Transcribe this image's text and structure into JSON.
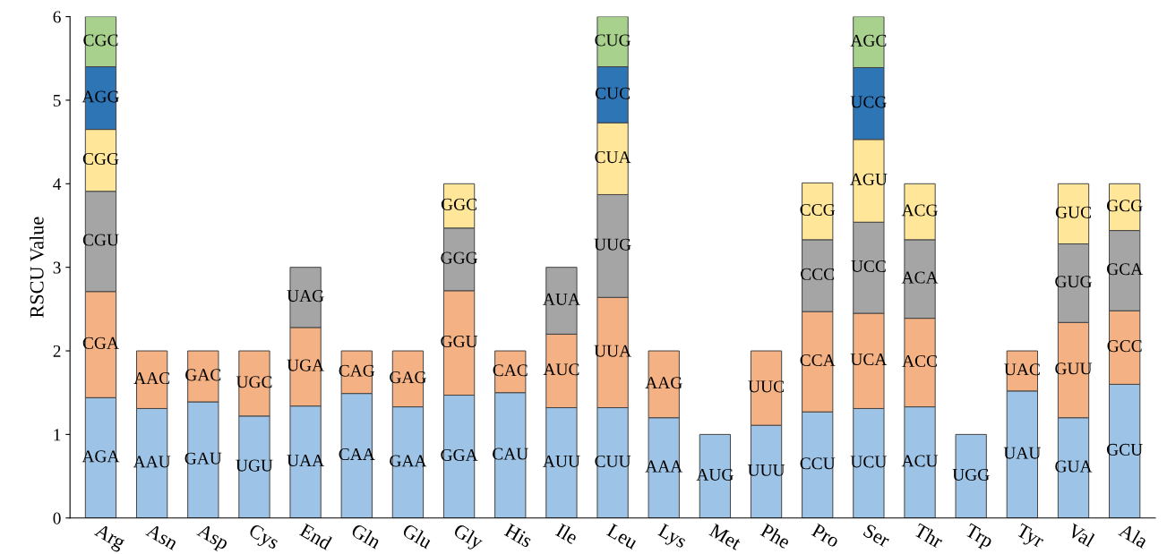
{
  "chart_data": {
    "type": "bar",
    "stacked": true,
    "ylabel": "RSCU Value",
    "ylim": [
      0,
      6
    ],
    "yticks": [
      0,
      1,
      2,
      3,
      4,
      5,
      6
    ],
    "grid": false,
    "legend": false,
    "categories": [
      "Arg",
      "Asn",
      "Asp",
      "Cys",
      "End",
      "Gln",
      "Glu",
      "Gly",
      "His",
      "Ile",
      "Leu",
      "Lys",
      "Met",
      "Phe",
      "Pro",
      "Ser",
      "Thr",
      "Trp",
      "Tyr",
      "Val",
      "Ala"
    ],
    "series": [
      {
        "color": "#9dc3e6",
        "values": [
          1.44,
          1.31,
          1.39,
          1.22,
          1.34,
          1.49,
          1.33,
          1.47,
          1.5,
          1.32,
          1.32,
          1.2,
          1.0,
          1.11,
          1.27,
          1.31,
          1.33,
          1.0,
          1.52,
          1.2,
          1.6
        ],
        "value_labels": [
          "AGA",
          "AAU",
          "GAU",
          "UGU",
          "UAA",
          "CAA",
          "GAA",
          "GGA",
          "CAU",
          "AUU",
          "CUU",
          "AAA",
          "AUG",
          "UUU",
          "CCU",
          "UCU",
          "ACU",
          "UGG",
          "UAU",
          "GUA",
          "GCU"
        ]
      },
      {
        "color": "#f4b183",
        "values": [
          1.27,
          0.69,
          0.61,
          0.78,
          0.94,
          0.51,
          0.67,
          1.25,
          0.5,
          0.88,
          1.32,
          0.8,
          null,
          0.89,
          1.2,
          1.14,
          1.06,
          null,
          0.48,
          1.14,
          0.88
        ],
        "value_labels": [
          "CGA",
          "AAC",
          "GAC",
          "UGC",
          "UGA",
          "CAG",
          "GAG",
          "GGU",
          "CAC",
          "AUC",
          "UUA",
          "AAG",
          null,
          "UUC",
          "CCA",
          "UCA",
          "ACC",
          null,
          "UAC",
          "GUU",
          "GCC"
        ]
      },
      {
        "color": "#a5a5a5",
        "values": [
          1.2,
          null,
          null,
          null,
          0.72,
          null,
          null,
          0.75,
          null,
          0.8,
          1.23,
          null,
          null,
          null,
          0.86,
          1.09,
          0.94,
          null,
          null,
          0.94,
          0.96
        ],
        "value_labels": [
          "CGU",
          null,
          null,
          null,
          "UAG",
          null,
          null,
          "GGG",
          null,
          "AUA",
          "UUG",
          null,
          null,
          null,
          "CCC",
          "UCC",
          "ACA",
          null,
          null,
          "GUG",
          "GCA"
        ]
      },
      {
        "color": "#ffe699",
        "values": [
          0.74,
          null,
          null,
          null,
          null,
          null,
          null,
          0.53,
          null,
          null,
          0.86,
          null,
          null,
          null,
          0.68,
          0.99,
          0.67,
          null,
          null,
          0.72,
          0.56
        ],
        "value_labels": [
          "CGG",
          null,
          null,
          null,
          null,
          null,
          null,
          "GGC",
          null,
          null,
          "CUA",
          null,
          null,
          null,
          "CCG",
          "AGU",
          "ACG",
          null,
          null,
          "GUC",
          "GCG"
        ]
      },
      {
        "color": "#2e75b6",
        "values": [
          0.75,
          null,
          null,
          null,
          null,
          null,
          null,
          null,
          null,
          null,
          0.67,
          null,
          null,
          null,
          null,
          0.86,
          null,
          null,
          null,
          null,
          null
        ],
        "value_labels": [
          "AGG",
          null,
          null,
          null,
          null,
          null,
          null,
          null,
          null,
          null,
          "CUC",
          null,
          null,
          null,
          null,
          "UCG",
          null,
          null,
          null,
          null,
          null
        ]
      },
      {
        "color": "#a9d18e",
        "values": [
          0.6,
          null,
          null,
          null,
          null,
          null,
          null,
          null,
          null,
          null,
          0.6,
          null,
          null,
          null,
          null,
          0.61,
          null,
          null,
          null,
          null,
          null
        ],
        "value_labels": [
          "CGC",
          null,
          null,
          null,
          null,
          null,
          null,
          null,
          null,
          null,
          "CUG",
          null,
          null,
          null,
          null,
          "AGC",
          null,
          null,
          null,
          null,
          null
        ]
      }
    ]
  }
}
